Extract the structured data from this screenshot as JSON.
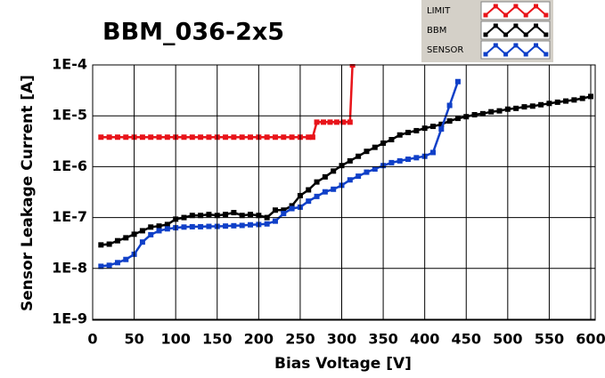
{
  "chart_data": {
    "type": "line",
    "title": "BBM_036-2x5",
    "xlabel": "Bias Voltage [V]",
    "ylabel": "Sensor Leakage Current [A]",
    "xlim": [
      0,
      600
    ],
    "xticks": [
      0,
      50,
      100,
      150,
      200,
      250,
      300,
      350,
      400,
      450,
      500,
      550,
      600
    ],
    "ylim": [
      1e-09,
      0.0001
    ],
    "yscale": "log",
    "yticks": [
      {
        "value": 1e-09,
        "label": "1E-9"
      },
      {
        "value": 1e-08,
        "label": "1E-8"
      },
      {
        "value": 1e-07,
        "label": "1E-7"
      },
      {
        "value": 1e-06,
        "label": "1E-6"
      },
      {
        "value": 1e-05,
        "label": "1E-5"
      },
      {
        "value": 0.0001,
        "label": "1E-4"
      }
    ],
    "grid": true,
    "legend": "top-right",
    "series": [
      {
        "name": "LIMIT",
        "color": "#e8141a",
        "x": [
          10,
          20,
          30,
          40,
          50,
          60,
          70,
          80,
          90,
          100,
          110,
          120,
          130,
          140,
          150,
          160,
          170,
          180,
          190,
          200,
          210,
          220,
          230,
          240,
          250,
          260,
          265,
          270,
          278,
          286,
          294,
          302,
          310,
          313
        ],
        "values": [
          3.8e-06,
          3.8e-06,
          3.8e-06,
          3.8e-06,
          3.8e-06,
          3.8e-06,
          3.8e-06,
          3.8e-06,
          3.8e-06,
          3.8e-06,
          3.8e-06,
          3.8e-06,
          3.8e-06,
          3.8e-06,
          3.8e-06,
          3.8e-06,
          3.8e-06,
          3.8e-06,
          3.8e-06,
          3.8e-06,
          3.8e-06,
          3.8e-06,
          3.8e-06,
          3.8e-06,
          3.8e-06,
          3.8e-06,
          3.8e-06,
          7.5e-06,
          7.5e-06,
          7.5e-06,
          7.5e-06,
          7.5e-06,
          7.5e-06,
          0.0001
        ]
      },
      {
        "name": "BBM",
        "color": "#000000",
        "x": [
          10,
          20,
          30,
          40,
          50,
          60,
          70,
          80,
          90,
          100,
          110,
          120,
          130,
          140,
          150,
          160,
          170,
          180,
          190,
          200,
          210,
          220,
          230,
          240,
          250,
          260,
          270,
          280,
          290,
          300,
          310,
          320,
          330,
          340,
          350,
          360,
          370,
          380,
          390,
          400,
          410,
          420,
          430,
          440,
          450,
          460,
          470,
          480,
          490,
          500,
          510,
          520,
          530,
          540,
          550,
          560,
          570,
          580,
          590,
          600
        ],
        "values": [
          2.9e-08,
          3e-08,
          3.5e-08,
          4e-08,
          4.7e-08,
          5.5e-08,
          6.5e-08,
          6.8e-08,
          7.3e-08,
          9.3e-08,
          1e-07,
          1.1e-07,
          1.1e-07,
          1.15e-07,
          1.1e-07,
          1.15e-07,
          1.25e-07,
          1.1e-07,
          1.15e-07,
          1.1e-07,
          1e-07,
          1.4e-07,
          1.4e-07,
          1.7e-07,
          2.7e-07,
          3.5e-07,
          5e-07,
          6.3e-07,
          8.2e-07,
          1.05e-06,
          1.3e-06,
          1.6e-06,
          2e-06,
          2.4e-06,
          2.9e-06,
          3.4e-06,
          4.2e-06,
          4.7e-06,
          5.1e-06,
          5.7e-06,
          6.2e-06,
          6.8e-06,
          7.9e-06,
          8.9e-06,
          9.6e-06,
          1.05e-05,
          1.1e-05,
          1.2e-05,
          1.25e-05,
          1.35e-05,
          1.4e-05,
          1.5e-05,
          1.55e-05,
          1.65e-05,
          1.75e-05,
          1.85e-05,
          1.95e-05,
          2.05e-05,
          2.2e-05,
          2.4e-05
        ]
      },
      {
        "name": "SENSOR",
        "color": "#1040c8",
        "x": [
          10,
          20,
          30,
          40,
          50,
          60,
          70,
          80,
          90,
          100,
          110,
          120,
          130,
          140,
          150,
          160,
          170,
          180,
          190,
          200,
          210,
          220,
          230,
          240,
          250,
          260,
          270,
          280,
          290,
          300,
          310,
          320,
          330,
          340,
          350,
          360,
          370,
          380,
          390,
          400,
          410,
          420,
          430,
          440
        ],
        "values": [
          1.1e-08,
          1.15e-08,
          1.3e-08,
          1.5e-08,
          1.9e-08,
          3.3e-08,
          4.6e-08,
          5.5e-08,
          6e-08,
          6.3e-08,
          6.5e-08,
          6.6e-08,
          6.6e-08,
          6.7e-08,
          6.7e-08,
          6.8e-08,
          6.9e-08,
          7e-08,
          7.2e-08,
          7.3e-08,
          7.5e-08,
          8.5e-08,
          1.2e-07,
          1.5e-07,
          1.6e-07,
          2.1e-07,
          2.6e-07,
          3.2e-07,
          3.6e-07,
          4.3e-07,
          5.5e-07,
          6.5e-07,
          7.8e-07,
          9e-07,
          1.05e-06,
          1.2e-06,
          1.3e-06,
          1.4e-06,
          1.5e-06,
          1.6e-06,
          1.9e-06,
          5.5e-06,
          1.6e-05,
          4.7e-05
        ]
      }
    ]
  }
}
